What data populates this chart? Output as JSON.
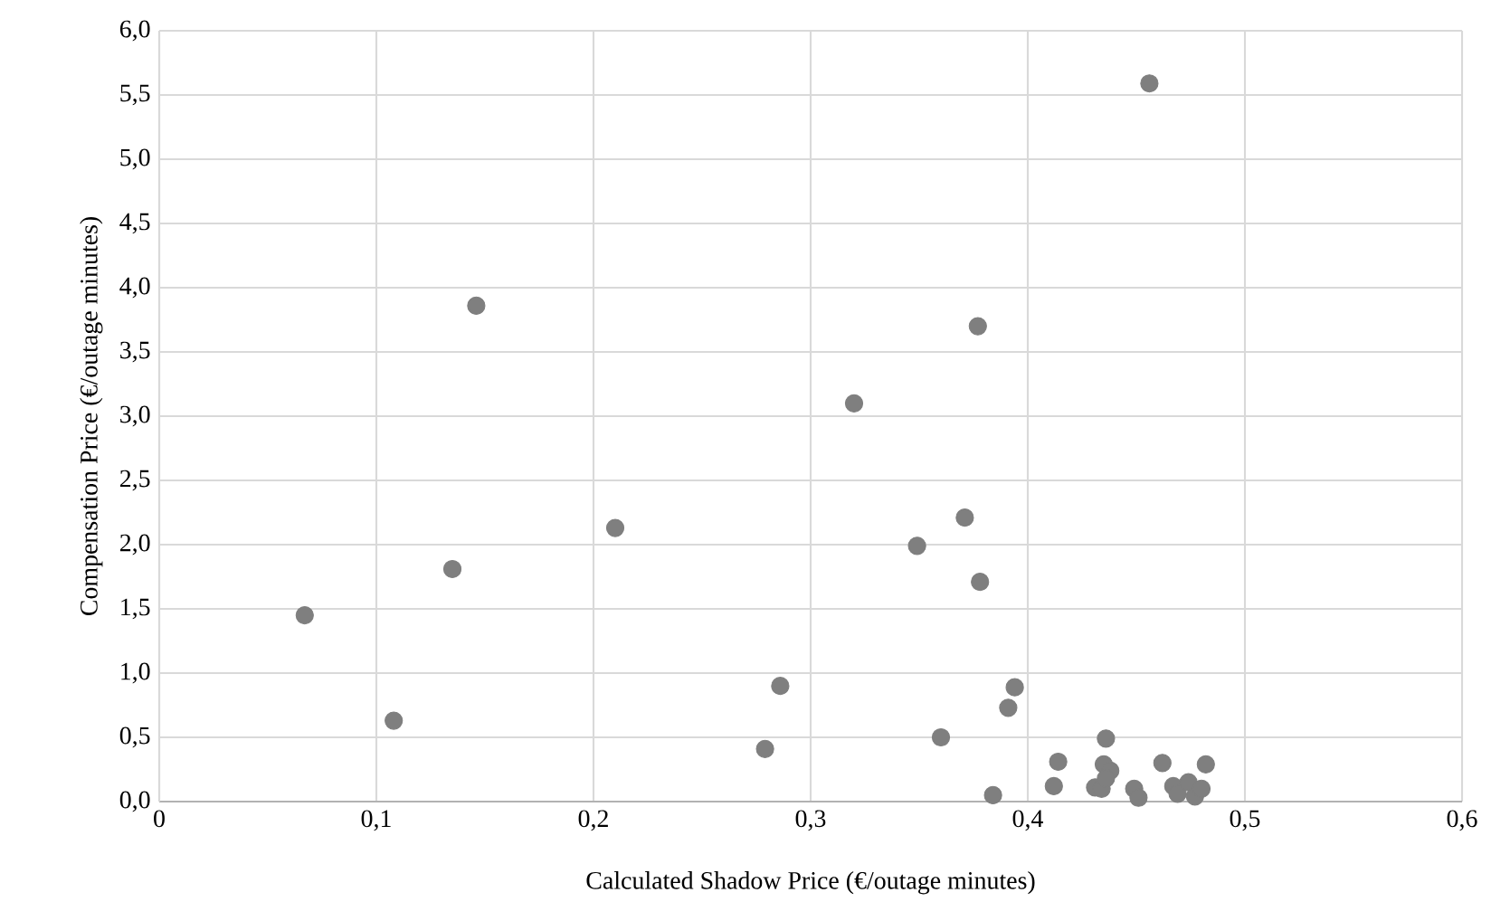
{
  "chart_data": {
    "type": "scatter",
    "xlabel": "Calculated Shadow Price (€/outage minutes)",
    "ylabel": "Compensation Price (€/outage minutes)",
    "x": [
      0.067,
      0.108,
      0.135,
      0.146,
      0.21,
      0.279,
      0.286,
      0.32,
      0.349,
      0.36,
      0.371,
      0.377,
      0.378,
      0.384,
      0.391,
      0.394,
      0.412,
      0.414,
      0.431,
      0.434,
      0.435,
      0.436,
      0.438,
      0.436,
      0.449,
      0.451,
      0.456,
      0.462,
      0.467,
      0.469,
      0.474,
      0.477,
      0.48,
      0.482
    ],
    "values": [
      1.45,
      0.63,
      1.81,
      3.86,
      2.13,
      0.41,
      0.9,
      3.1,
      1.99,
      0.5,
      2.21,
      3.7,
      1.71,
      0.05,
      0.73,
      0.89,
      0.12,
      0.31,
      0.11,
      0.1,
      0.29,
      0.49,
      0.24,
      0.18,
      0.1,
      0.03,
      5.59,
      0.3,
      0.12,
      0.06,
      0.15,
      0.04,
      0.1,
      0.29
    ],
    "color": "#7f7f7f",
    "marker": "circle",
    "grid": true,
    "xlim": [
      0,
      0.6
    ],
    "ylim": [
      0,
      6
    ],
    "xticks": [
      0,
      {
        "value": 0.1,
        "label": "0,1"
      },
      {
        "value": 0.2,
        "label": "0,2"
      },
      {
        "value": 0.3,
        "label": "0,3"
      },
      {
        "value": 0.4,
        "label": "0,4"
      },
      {
        "value": 0.5,
        "label": "0,5"
      },
      {
        "value": 0.6,
        "label": "0,6"
      }
    ],
    "yticks": [
      {
        "value": 0,
        "label": "0,0"
      },
      {
        "value": 0.5,
        "label": "0,5"
      },
      {
        "value": 1,
        "label": "1,0"
      },
      {
        "value": 1.5,
        "label": "1,5"
      },
      {
        "value": 2,
        "label": "2,0"
      },
      {
        "value": 2.5,
        "label": "2,5"
      },
      {
        "value": 3,
        "label": "3,0"
      },
      {
        "value": 3.5,
        "label": "3,5"
      },
      {
        "value": 4,
        "label": "4,0"
      },
      {
        "value": 4.5,
        "label": "4,5"
      },
      {
        "value": 5,
        "label": "5,0"
      },
      {
        "value": 5.5,
        "label": "5,5"
      },
      {
        "value": 6,
        "label": "6,0"
      }
    ]
  }
}
